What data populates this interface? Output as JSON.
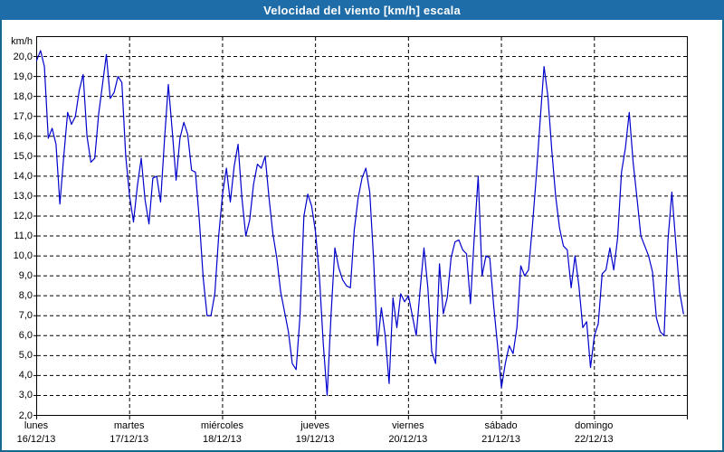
{
  "title": "Velocidad del viento [km/h] escala",
  "colors": {
    "frame": "#17678e",
    "titlebar": "#1e6da8",
    "line": "#0000cd",
    "grid": "#000000",
    "background": "#ffffff",
    "text": "#000000"
  },
  "chart_data": {
    "type": "line",
    "title": "Velocidad del viento [km/h] escala",
    "ylabel": "km/h",
    "xlabel": "",
    "ylim": [
      2,
      21
    ],
    "ytick_step": 1.0,
    "ytick_labels": [
      "20,0",
      "19,0",
      "18,0",
      "17,0",
      "16,0",
      "15,0",
      "14,0",
      "13,0",
      "12,0",
      "11,0",
      "10,0",
      "9,0",
      "8,0",
      "7,0",
      "6,0",
      "5,0",
      "4,0",
      "3,0",
      "2,0"
    ],
    "ytick_values": [
      20,
      19,
      18,
      17,
      16,
      15,
      14,
      13,
      12,
      11,
      10,
      9,
      8,
      7,
      6,
      5,
      4,
      3,
      2
    ],
    "grid": true,
    "legend_position": "none",
    "points_per_day": 24,
    "x_days": [
      {
        "name": "lunes",
        "date": "16/12/13"
      },
      {
        "name": "martes",
        "date": "17/12/13"
      },
      {
        "name": "miércoles",
        "date": "18/12/13"
      },
      {
        "name": "jueves",
        "date": "19/12/13"
      },
      {
        "name": "viernes",
        "date": "20/12/13"
      },
      {
        "name": "sábado",
        "date": "21/12/13"
      },
      {
        "name": "domingo",
        "date": "22/12/13"
      }
    ],
    "series": [
      {
        "name": "Velocidad del viento",
        "values": [
          19.8,
          20.3,
          19.5,
          15.9,
          16.4,
          15.6,
          12.6,
          15.0,
          17.2,
          16.6,
          17.0,
          18.3,
          19.1,
          16.0,
          14.7,
          14.9,
          17.1,
          18.6,
          20.1,
          17.9,
          18.2,
          19.0,
          18.7,
          15.0,
          13.0,
          11.7,
          13.5,
          14.9,
          12.8,
          11.6,
          13.9,
          14.0,
          12.7,
          15.8,
          18.6,
          16.3,
          13.8,
          15.9,
          16.7,
          16.1,
          14.3,
          14.2,
          11.8,
          8.9,
          7.0,
          7.0,
          8.1,
          11.0,
          13.1,
          14.4,
          12.7,
          14.5,
          15.6,
          12.9,
          11.0,
          11.8,
          13.6,
          14.6,
          14.4,
          15.0,
          12.9,
          11.1,
          9.9,
          8.2,
          7.2,
          6.2,
          4.6,
          4.3,
          7.0,
          12.0,
          13.1,
          12.5,
          11.2,
          9.0,
          5.6,
          3.0,
          7.0,
          10.4,
          9.4,
          8.8,
          8.5,
          8.4,
          11.3,
          12.9,
          13.9,
          14.4,
          13.2,
          9.8,
          5.5,
          7.4,
          6.0,
          3.6,
          7.9,
          6.4,
          8.1,
          7.7,
          8.0,
          7.0,
          6.0,
          8.3,
          10.4,
          8.4,
          5.2,
          4.6,
          9.6,
          7.1,
          7.9,
          9.9,
          10.7,
          10.8,
          10.3,
          10.1,
          7.6,
          11.0,
          14.0,
          9.0,
          10.0,
          9.9,
          7.5,
          5.5,
          3.4,
          4.6,
          5.5,
          5.1,
          6.4,
          9.5,
          9.0,
          9.3,
          11.5,
          14.0,
          16.8,
          19.5,
          18.0,
          15.3,
          13.0,
          11.4,
          10.5,
          10.3,
          8.4,
          10.0,
          8.5,
          6.4,
          6.7,
          4.4,
          6.0,
          6.6,
          9.1,
          9.3,
          10.4,
          9.3,
          10.9,
          14.2,
          15.4,
          17.2,
          14.7,
          12.9,
          11.0,
          10.5,
          10.0,
          9.2,
          6.9,
          6.2,
          6.0,
          10.8,
          13.2,
          10.7,
          8.2,
          7.1
        ]
      }
    ]
  }
}
